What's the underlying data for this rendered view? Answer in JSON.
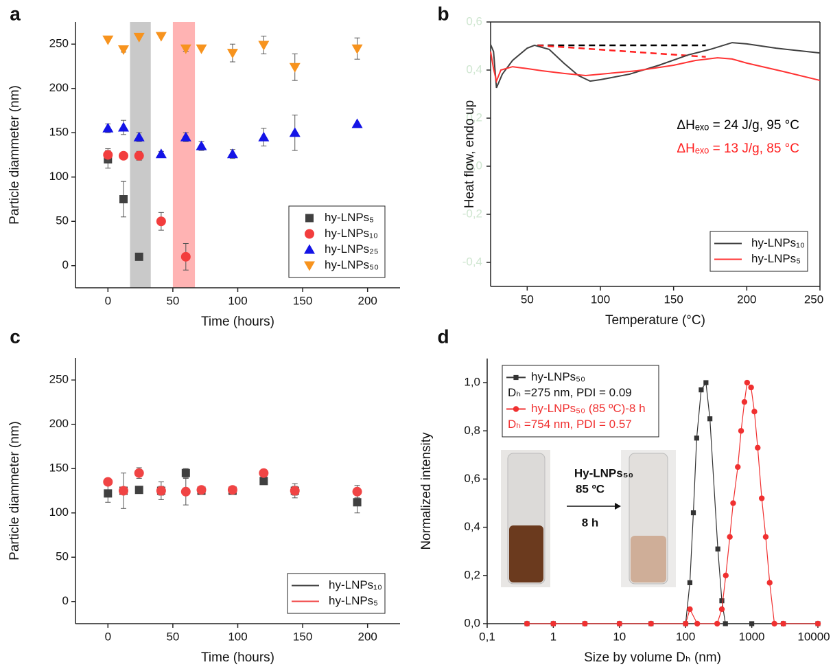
{
  "chart_data": [
    {
      "type": "scatter",
      "panel": "a",
      "x_label": "Time (hours)",
      "y_label": "Particle diammeter (nm)",
      "xlim": [
        -25,
        225
      ],
      "xticks": [
        0,
        50,
        100,
        150,
        200
      ],
      "ylim": [
        -25,
        275
      ],
      "yticks": [
        0,
        50,
        100,
        150,
        200,
        250
      ],
      "legend": "lower right",
      "legend_symbol": "marker",
      "bands": [
        {
          "x": [
            17,
            33
          ],
          "color": "#c9c9c9"
        },
        {
          "x": [
            50,
            67
          ],
          "color": "#ffb3b3"
        }
      ],
      "series": [
        {
          "name": "hy-LNPs₅",
          "color": "#404040",
          "marker": "square",
          "x": [
            0,
            12,
            24
          ],
          "values": [
            120,
            75,
            10
          ],
          "errors": [
            10,
            20,
            0
          ]
        },
        {
          "name": "hy-LNPs₁₀",
          "color": "#f23d3d",
          "marker": "circle",
          "x": [
            0,
            12,
            24,
            41,
            60
          ],
          "values": [
            125,
            124,
            124,
            50,
            10
          ],
          "errors": [
            7,
            3,
            5,
            10,
            15
          ]
        },
        {
          "name": "hy-LNPs₂₅",
          "color": "#1414e6",
          "marker": "triangle-up",
          "x": [
            0,
            12,
            24,
            41,
            60,
            72,
            96,
            120,
            144,
            192
          ],
          "values": [
            155,
            156,
            145,
            126,
            145,
            135,
            126,
            145,
            150,
            160
          ],
          "errors": [
            5,
            8,
            5,
            3,
            5,
            5,
            5,
            10,
            20,
            0
          ]
        },
        {
          "name": "hy-LNPs₅₀",
          "color": "#f7931e",
          "marker": "triangle-down",
          "x": [
            0,
            12,
            24,
            41,
            60,
            72,
            96,
            120,
            144,
            192
          ],
          "values": [
            255,
            244,
            258,
            259,
            245,
            245,
            240,
            249,
            224,
            245
          ],
          "errors": [
            0,
            3,
            0,
            0,
            3,
            0,
            10,
            10,
            15,
            12
          ]
        }
      ]
    },
    {
      "type": "line",
      "panel": "b",
      "x_label": "Temperature (°C)",
      "y_label": "Heat flow, endo up",
      "frame": true,
      "xlim": [
        25,
        250
      ],
      "xticks": [
        50,
        100,
        150,
        200,
        250
      ],
      "ylim": [
        -0.5,
        0.6
      ],
      "yticks": [
        {
          "value": 0.6,
          "label": "0,6"
        },
        {
          "value": 0.4,
          "label": "0,4"
        },
        {
          "value": 0.2,
          "label": "0,2"
        },
        {
          "value": 0,
          "label": "0,0"
        },
        {
          "value": -0.2,
          "label": "-0,2"
        },
        {
          "value": -0.4,
          "label": "-0,4"
        }
      ],
      "ytick_color": "#cfe6d0",
      "legend": "lower right",
      "legend_symbol": "line",
      "series": [
        {
          "name": "hy-LNPs₁₀",
          "color": "#404040",
          "x": [
            25,
            27,
            29,
            33,
            40,
            50,
            55,
            65,
            75,
            85,
            93,
            100,
            120,
            140,
            160,
            175,
            190,
            200,
            220,
            250
          ],
          "values": [
            0.506,
            0.477,
            0.326,
            0.383,
            0.44,
            0.491,
            0.503,
            0.486,
            0.429,
            0.377,
            0.354,
            0.36,
            0.383,
            0.42,
            0.463,
            0.486,
            0.514,
            0.509,
            0.491,
            0.471
          ]
        },
        {
          "name": "hy-LNPs₅",
          "color": "#ff3333",
          "x": [
            25,
            27,
            29,
            32,
            40,
            50,
            60,
            75,
            90,
            100,
            125,
            150,
            165,
            180,
            190,
            200,
            225,
            250
          ],
          "values": [
            0.477,
            0.406,
            0.354,
            0.4,
            0.414,
            0.406,
            0.397,
            0.386,
            0.377,
            0.383,
            0.397,
            0.42,
            0.44,
            0.451,
            0.446,
            0.429,
            0.394,
            0.357
          ]
        }
      ],
      "guides": [
        {
          "color": "#000000",
          "x": [
            57,
            172
          ],
          "values": [
            0.503,
            0.503
          ]
        },
        {
          "color": "#ff2020",
          "x": [
            57,
            172
          ],
          "values": [
            0.503,
            0.455
          ]
        }
      ],
      "annotations": [
        {
          "text": "ΔHₑₓₒ = 24 J/g, 95 °C",
          "color": "#000000"
        },
        {
          "text": "ΔHₑₓₒ = 13 J/g, 85 °C",
          "color": "#ff2020"
        }
      ]
    },
    {
      "type": "scatter",
      "panel": "c",
      "x_label": "Time (hours)",
      "y_label": "Particle diammeter (nm)",
      "xlim": [
        -25,
        225
      ],
      "xticks": [
        0,
        50,
        100,
        150,
        200
      ],
      "ylim": [
        -25,
        275
      ],
      "yticks": [
        0,
        50,
        100,
        150,
        200,
        250
      ],
      "legend": "lower right",
      "legend_symbol": "line",
      "series": [
        {
          "name": "hy-LNPs₁₀",
          "color": "#404040",
          "marker": "square",
          "x": [
            0,
            12,
            24,
            41,
            60,
            72,
            96,
            120,
            144,
            192
          ],
          "values": [
            122,
            125,
            126,
            125,
            145,
            125,
            125,
            136,
            125,
            112
          ],
          "errors": [
            10,
            20,
            3,
            5,
            5,
            3,
            3,
            3,
            8,
            12
          ]
        },
        {
          "name": "hy-LNPs₅",
          "color": "#f04444",
          "marker": "circle",
          "x": [
            0,
            12,
            24,
            41,
            60,
            72,
            96,
            120,
            144,
            192
          ],
          "values": [
            135,
            125,
            145,
            125,
            124,
            126,
            126,
            145,
            125,
            124
          ],
          "errors": [
            3,
            3,
            6,
            10,
            15,
            3,
            3,
            3,
            5,
            7
          ]
        }
      ]
    },
    {
      "type": "line",
      "panel": "d",
      "x_label": "Size by volume Dₕ (nm)",
      "y_label": "Normalized intensity",
      "xscale": "log",
      "xlim": [
        0.1,
        10000
      ],
      "xticks": [
        {
          "value": 0.1,
          "label": "0,1"
        },
        1,
        10,
        100,
        1000,
        10000
      ],
      "ylim": [
        0,
        1.1
      ],
      "yticks": [
        {
          "value": 0,
          "label": "0,0"
        },
        {
          "value": 0.2,
          "label": "0,2"
        },
        {
          "value": 0.4,
          "label": "0,4"
        },
        {
          "value": 0.6,
          "label": "0,6"
        },
        {
          "value": 0.8,
          "label": "0,8"
        },
        {
          "value": 1,
          "label": "1,0"
        }
      ],
      "legend": "upper left",
      "legend_symbol": "line-marker",
      "series": [
        {
          "name": "hy-LNPs₅₀",
          "note": "Dₕ =275 nm, PDI = 0.09",
          "color": "#333333",
          "marker": "square",
          "x": [
            0.4,
            1,
            3,
            10,
            30,
            100,
            116,
            131,
            147,
            172,
            203,
            233,
            307,
            353,
            400,
            1000,
            3000,
            10000
          ],
          "values": [
            0,
            0,
            0,
            0,
            0,
            0,
            0.17,
            0.46,
            0.77,
            0.97,
            1.0,
            0.85,
            0.31,
            0.095,
            0,
            0,
            0,
            0
          ]
        },
        {
          "name": "hy-LNPs₅₀ (85 ºC)-8 h",
          "note": "Dₕ =754 nm, PDI = 0.57",
          "color": "#f03030",
          "marker": "circle",
          "x": [
            0.4,
            1,
            3,
            10,
            30,
            100,
            116,
            150,
            300,
            353,
            405,
            466,
            523,
            615,
            690,
            775,
            851,
            977,
            1096,
            1230,
            1416,
            1626,
            1866,
            2198,
            3000,
            10000
          ],
          "values": [
            0,
            0,
            0,
            0,
            0,
            0,
            0.06,
            0,
            0,
            0.06,
            0.2,
            0.36,
            0.5,
            0.65,
            0.8,
            0.92,
            1.0,
            0.98,
            0.88,
            0.73,
            0.52,
            0.36,
            0.17,
            0,
            0,
            0
          ]
        }
      ],
      "inset": {
        "title": "Hy-LNPs₅₀",
        "temperature": "85 ºC",
        "time": "8 h"
      }
    }
  ]
}
